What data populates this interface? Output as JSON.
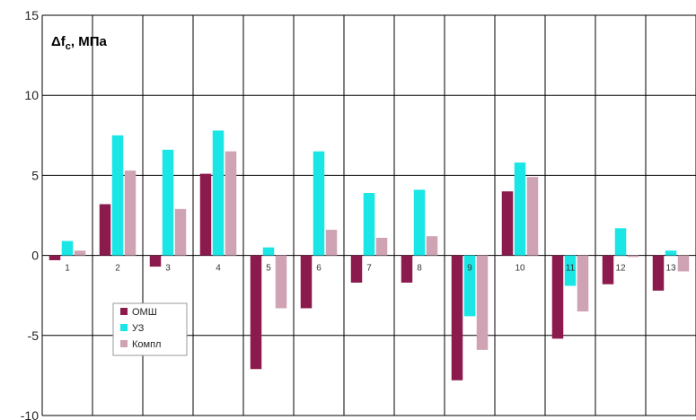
{
  "chart_data": {
    "type": "bar",
    "ylabel": "Δf",
    "ylabel_sub": "c",
    "ylabel_unit": ", МПа",
    "ylim": [
      -10,
      15
    ],
    "yticks": [
      -10,
      -5,
      0,
      5,
      10,
      15
    ],
    "grid": true,
    "legend_position": "lower-left",
    "categories": [
      "1",
      "2",
      "3",
      "4",
      "5",
      "6",
      "7",
      "8",
      "9",
      "10",
      "11",
      "12",
      "13"
    ],
    "series": [
      {
        "name": "ОМШ",
        "color": "#8b1a4d",
        "values": [
          -0.3,
          3.2,
          -0.7,
          5.1,
          -7.1,
          -3.3,
          -1.7,
          -1.7,
          -7.8,
          4.0,
          -5.2,
          -1.8,
          -2.2
        ]
      },
      {
        "name": "УЗ",
        "color": "#1ae6e6",
        "values": [
          0.9,
          7.5,
          6.6,
          7.8,
          0.5,
          6.5,
          3.9,
          4.1,
          -3.8,
          5.8,
          -1.9,
          1.7,
          0.3
        ]
      },
      {
        "name": "Компл",
        "color": "#cfa3b4",
        "values": [
          0.3,
          5.3,
          2.9,
          6.5,
          -3.3,
          1.6,
          1.1,
          1.2,
          -5.9,
          4.9,
          -3.5,
          -0.1,
          -1.0
        ]
      }
    ]
  }
}
